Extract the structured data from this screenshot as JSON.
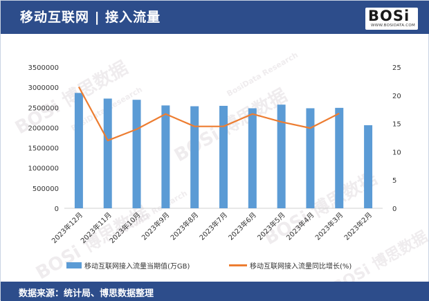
{
  "header": {
    "title": "移动互联网 | 接入流量"
  },
  "logo": {
    "text": "BOSi",
    "subtext": "WWW.BOSIDATA.COM"
  },
  "footer": {
    "source": "数据来源：统计局、博思数据整理"
  },
  "watermark": {
    "main": "BOSi 博思数据",
    "sub": "BosiData Research"
  },
  "colors": {
    "header_bg": "#2d4d8b",
    "bar": "#5b9bd5",
    "line": "#ed7d31"
  },
  "chart_data": {
    "type": "bar+line",
    "title": "",
    "categories": [
      "2023年12月",
      "2023年11月",
      "2023年10月",
      "2023年9月",
      "2023年8月",
      "2023年7月",
      "2023年6月",
      "2023年5月",
      "2023年4月",
      "2023年3月",
      "2023年2月"
    ],
    "series": [
      {
        "name": "移动互联网接入流量当期值(万GB)",
        "type": "bar",
        "axis": "left",
        "values": [
          2860000,
          2720000,
          2690000,
          2550000,
          2530000,
          2540000,
          2480000,
          2570000,
          2480000,
          2490000,
          2060000
        ]
      },
      {
        "name": "移动互联网接入流量同比增长(%)",
        "type": "line",
        "axis": "right",
        "values": [
          21.5,
          12,
          14,
          16.7,
          14.5,
          14.5,
          16.7,
          15.3,
          14.2,
          16.8,
          null
        ]
      }
    ],
    "y_left": {
      "min": 0,
      "max": 3500000,
      "ticks": [
        "3500000",
        "3000000",
        "2500000",
        "2000000",
        "1500000",
        "1000000",
        "500000",
        "0"
      ]
    },
    "y_right": {
      "min": 0,
      "max": 25,
      "ticks": [
        "25",
        "20",
        "15",
        "10",
        "5",
        "0"
      ]
    },
    "grid": false,
    "legend": "bottom"
  }
}
